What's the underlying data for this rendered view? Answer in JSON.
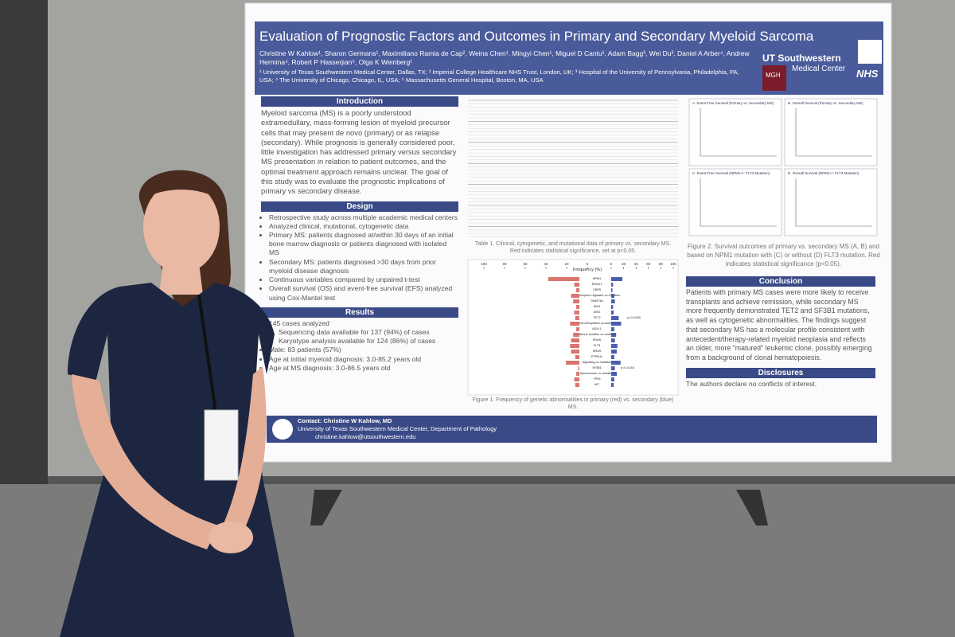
{
  "poster": {
    "title": "Evaluation of Prognostic Factors and Outcomes in Primary and Secondary Myeloid Sarcoma",
    "authors": "Christine W Kahlow¹, Sharon Germans¹, Maximiliano Ramia de Cap², Weina Chen¹, Mingyi Chen¹, Miguel D Cantu¹, Adam Bagg³, Wei Du³, Daniel A Arber⁴, Andrew Hermina⁴, Robert P Hasserjian⁵, Olga K Weinberg¹",
    "affiliations": "¹ University of Texas Southwestern Medical Center, Dallas, TX; ² Imperial College Healthcare NHS Trust, London, UK; ³ Hospital of the University of Pennsylvania, Philadelphia, PA, USA; ⁴ The University of Chicago, Chicago, IL, USA; ⁵ Massachusetts General Hospital, Boston, MA, USA",
    "logos": [
      "UT Southwestern",
      "Medical Center",
      "MGH",
      "NHS"
    ],
    "introduction": {
      "heading": "Introduction",
      "text": "Myeloid sarcoma (MS) is a poorly understood extramedullary, mass-forming lesion of myeloid precursor cells that may present de novo (primary) or as relapse (secondary). While prognosis is generally considered poor, little investigation has addressed primary versus secondary MS presentation in relation to patient outcomes, and the optimal treatment approach remains unclear. The goal of this study was to evaluate the prognostic implications of primary vs secondary disease."
    },
    "design": {
      "heading": "Design",
      "items": [
        "Retrospective study across multiple academic medical centers",
        "Analyzed clinical, mutational, cytogenetic data",
        "Primary MS: patients diagnosed at/within 30 days of an initial bone marrow diagnosis or patients diagnosed with isolated MS",
        "Secondary MS: patients diagnosed >30 days from prior myeloid disease diagnosis",
        "Continuous variables compared by unpaired t-test",
        "Overall survival (OS) and event-free survival (EFS) analyzed using Cox-Mantel test"
      ]
    },
    "results": {
      "heading": "Results",
      "items": [
        "145 cases analyzed",
        "Sequencing data available for 137 (94%) of cases",
        "Karyotype analysis available for 124 (86%) of cases",
        "Male: 83 patients (57%)",
        "Age at initial myeloid diagnosis: 3.0-85.2 years old",
        "Age at MS diagnosis: 3.0-86.5 years old"
      ]
    },
    "table_caption": "Table 1. Clinical, cytogenetic, and mutational data of primary vs. secondary MS. Red indicates statistical significance, set at p<0.05.",
    "figure1": {
      "title": "Frequency (%)",
      "ticks_left": [
        100,
        80,
        60,
        40,
        20,
        0
      ],
      "ticks_right": [
        0,
        20,
        40,
        60,
        80,
        100
      ],
      "genes": [
        "NPM1",
        "RUNX1",
        "CBFB",
        "Transcription regulator co-mutation",
        "DNMT3A",
        "IDH1",
        "IDH2",
        "TET2",
        "DNA methylation co-mutation",
        "ASXL1",
        "Histone modifier co-mutation",
        "KRAS",
        "FLT3",
        "NRAS",
        "PTPN11",
        "Signaling co-mutation",
        "SF3B1",
        "Spliceosome co-mutation",
        "TP53",
        "WT"
      ],
      "primary": [
        30,
        5,
        3,
        8,
        6,
        3,
        5,
        4,
        9,
        3,
        6,
        8,
        9,
        8,
        4,
        13,
        1,
        3,
        5,
        4
      ],
      "secondary": [
        18,
        3,
        2,
        5,
        6,
        3,
        4,
        12,
        16,
        5,
        8,
        6,
        10,
        9,
        5,
        15,
        6,
        9,
        5,
        4
      ],
      "annotations": [
        "p=0.0455",
        "p=0.0148"
      ],
      "caption": "Figure 1. Frequency of genetic abnormalities in primary (red) vs. secondary (blue) MS."
    },
    "figure2": {
      "panels": [
        "A. Event Free Survival (Primary vs. Secondary MS)",
        "B. Overall Survival (Primary vs. Secondary MS)",
        "C. Event Free Survival (NPM1+/- FLT3 Mutation)",
        "D. Overall Survival (NPM1+/- FLT3 Mutation)"
      ],
      "caption": "Figure 2. Survival outcomes of primary vs. secondary MS (A, B) and based on NPM1 mutation with (C) or without (D) FLT3 mutation. Red indicates statistical significance (p<0.05)."
    },
    "conclusion": {
      "heading": "Conclusion",
      "text": "Patients with primary MS cases were more likely to receive transplants and achieve remission, while secondary MS more frequently demonstrated TET2 and SF3B1 mutations, as well as cytogenetic abnormalities. The findings suggest that secondary MS has a molecular profile consistent with antecedent/therapy-related myeloid neoplasia and reflects an older, more \"matured\" leukemic clone, possibly emerging from a background of clonal hematopoiesis."
    },
    "disclosures": {
      "heading": "Disclosures",
      "text": "The authors declare no conflicts of interest."
    },
    "contact": [
      "Contact: Christine W Kahlow, MD",
      "University of Texas Southwestern Medical Center, Department of Pathology",
      "christine.kahlow@utsouthwestern.edu"
    ]
  }
}
